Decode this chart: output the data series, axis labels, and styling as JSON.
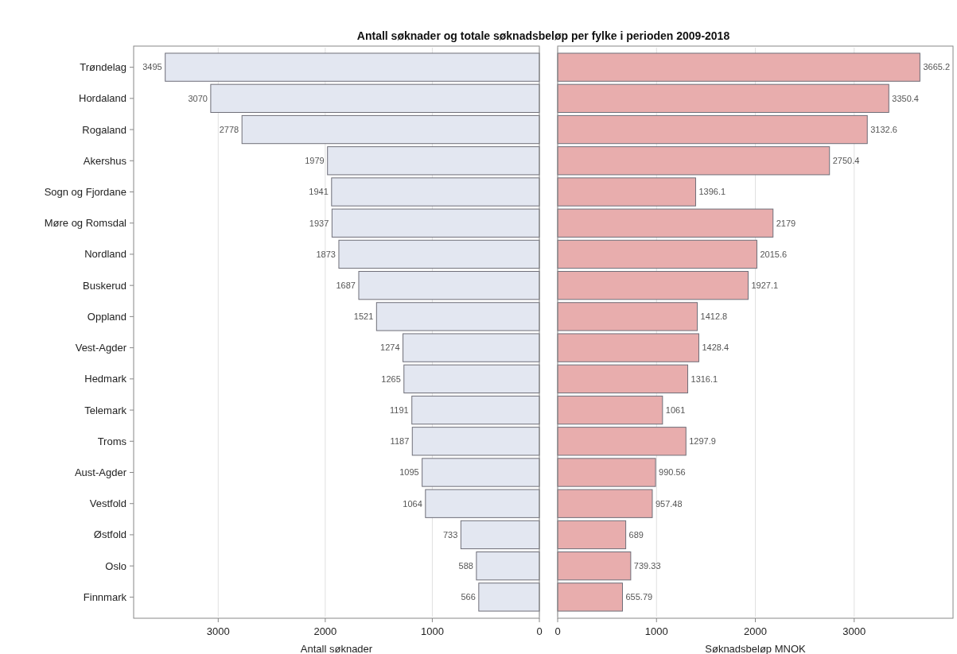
{
  "chart_data": [
    {
      "type": "bar",
      "orientation": "horizontal",
      "title": "Antall søknader og totale søknadsbeløp per  fylke i perioden 2009-2018",
      "xlabel": "Antall søknader",
      "categories": [
        "Trøndelag",
        "Hordaland",
        "Rogaland",
        "Akershus",
        "Sogn og Fjordane",
        "Møre og Romsdal",
        "Nordland",
        "Buskerud",
        "Oppland",
        "Vest-Agder",
        "Hedmark",
        "Telemark",
        "Troms",
        "Aust-Agder",
        "Vestfold",
        "Østfold",
        "Oslo",
        "Finnmark"
      ],
      "values": [
        3495,
        3070,
        2778,
        1979,
        1941,
        1937,
        1873,
        1687,
        1521,
        1274,
        1265,
        1191,
        1187,
        1095,
        1064,
        733,
        588,
        566
      ],
      "color": "#e3e7f1",
      "xlim": [
        3790,
        0
      ],
      "xticks": [
        3000,
        2000,
        1000,
        0
      ],
      "grid": "x",
      "data_labels": true
    },
    {
      "type": "bar",
      "orientation": "horizontal",
      "xlabel": "Søknadsbeløp MNOK",
      "categories": [
        null,
        null,
        null,
        null,
        null,
        null,
        null,
        null,
        null,
        null,
        null,
        null,
        null,
        null,
        null,
        null,
        null,
        null
      ],
      "values": [
        3665.2,
        3350.4,
        3132.6,
        2750.4,
        1396.1,
        2179,
        2015.6,
        1927.1,
        1412.8,
        1428.4,
        1316.1,
        1061,
        1297.9,
        990.56,
        957.48,
        689,
        739.33,
        655.79
      ],
      "color": "#e8adad",
      "xlim": [
        0,
        4000
      ],
      "xticks": [
        0,
        1000,
        2000,
        3000
      ],
      "grid": "x",
      "data_labels": true,
      "tick_labels": "x"
    }
  ]
}
